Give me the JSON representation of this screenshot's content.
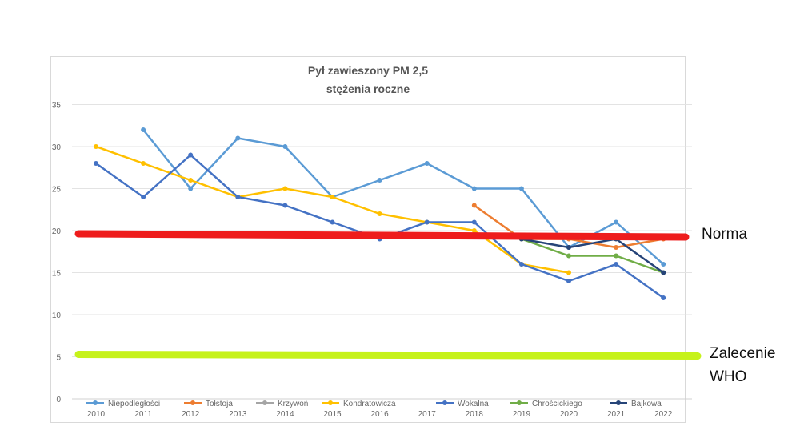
{
  "chart_data": {
    "type": "line",
    "title": "Pył zawieszony PM 2,5",
    "subtitle": "stężenia roczne",
    "x": [
      "2010",
      "2011",
      "2012",
      "2013",
      "2014",
      "2015",
      "2016",
      "2017",
      "2018",
      "2019",
      "2020",
      "2021",
      "2022"
    ],
    "ylim": [
      0,
      35
    ],
    "yticks": [
      0,
      5,
      10,
      15,
      20,
      25,
      30,
      35
    ],
    "grid": true,
    "legend_position": "bottom",
    "series": [
      {
        "name": "Niepodległości",
        "color": "#5b9bd5",
        "values": [
          null,
          32,
          25,
          31,
          30,
          24,
          26,
          28,
          25,
          25,
          18,
          21,
          16
        ]
      },
      {
        "name": "Tołstoja",
        "color": "#ed7d31",
        "values": [
          null,
          null,
          null,
          null,
          null,
          null,
          null,
          null,
          23,
          19,
          19,
          18,
          19
        ]
      },
      {
        "name": "Krzywoń",
        "color": "#a5a5a5",
        "values": [
          null,
          null,
          null,
          null,
          null,
          null,
          null,
          null,
          null,
          null,
          null,
          null,
          null
        ]
      },
      {
        "name": "Kondratowicza",
        "color": "#ffc000",
        "values": [
          30,
          28,
          26,
          24,
          25,
          24,
          22,
          21,
          20,
          16,
          15,
          null,
          null
        ]
      },
      {
        "name": "Wokalna",
        "color": "#4472c4",
        "values": [
          28,
          24,
          29,
          24,
          23,
          21,
          19,
          21,
          21,
          16,
          14,
          16,
          12
        ]
      },
      {
        "name": "Chrościckiego",
        "color": "#70ad47",
        "values": [
          null,
          null,
          null,
          null,
          null,
          null,
          null,
          null,
          null,
          19,
          17,
          17,
          15
        ]
      },
      {
        "name": "Bajkowa",
        "color": "#264478",
        "values": [
          null,
          null,
          null,
          null,
          null,
          null,
          null,
          null,
          null,
          19,
          18,
          19,
          15
        ]
      }
    ],
    "reference_lines": [
      {
        "label": "Norma",
        "value": 20,
        "color": "#ee1c1c"
      },
      {
        "label": "Zalecenie WHO",
        "value": 5,
        "color": "#c6f21a"
      }
    ]
  },
  "annotations": {
    "norma": "Norma",
    "who_line1": "Zalecenie",
    "who_line2": "WHO"
  }
}
